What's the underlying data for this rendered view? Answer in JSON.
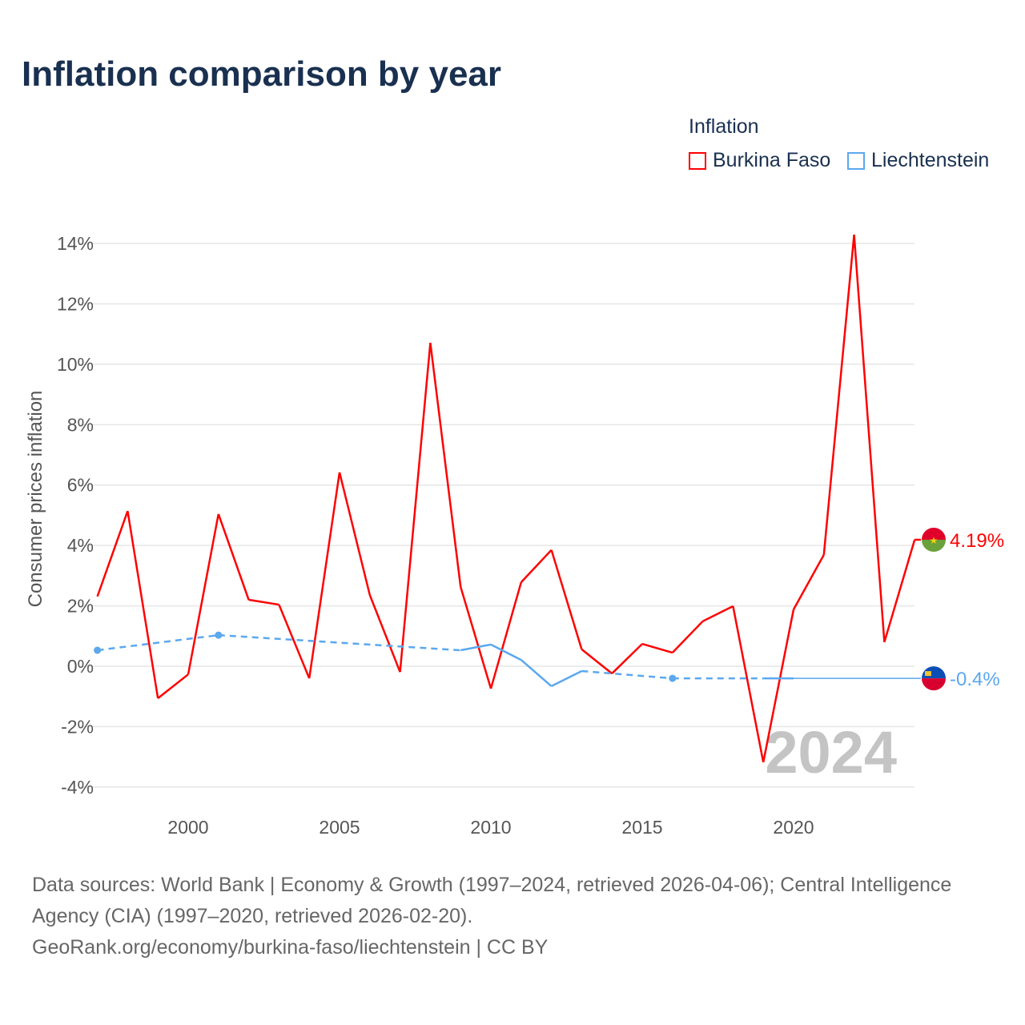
{
  "title": "Inflation comparison by year",
  "legend": {
    "title": "Inflation"
  },
  "watermark_year": "2024",
  "footer": {
    "line1": "Data sources: World Bank | Economy & Growth (1997–2024, retrieved 2026-04-06); Central Intelligence Agency (CIA) (1997–2020, retrieved 2026-02-20).",
    "line2": "GeoRank.org/economy/burkina-faso/liechtenstein | CC BY"
  },
  "chart_data": {
    "type": "line",
    "title": "Inflation comparison by year",
    "ylabel": "Consumer prices inflation",
    "xlabel": "",
    "xlim": [
      1997,
      2024
    ],
    "ylim": [
      -4.8,
      14.8
    ],
    "x_ticks": [
      2000,
      2005,
      2010,
      2015,
      2020
    ],
    "y_ticks": [
      -4,
      -2,
      0,
      2,
      4,
      6,
      8,
      10,
      12,
      14
    ],
    "y_tick_labels": [
      "-4%",
      "-2%",
      "0%",
      "2%",
      "4%",
      "6%",
      "8%",
      "10%",
      "12%",
      "14%"
    ],
    "grid": true,
    "legend_position": "top-right",
    "series": [
      {
        "name": "Burkina Faso",
        "color": "#ff0000",
        "end_label": "4.19%",
        "x": [
          1997,
          1998,
          1999,
          2000,
          2001,
          2002,
          2003,
          2004,
          2005,
          2006,
          2007,
          2008,
          2009,
          2010,
          2011,
          2012,
          2013,
          2014,
          2015,
          2016,
          2017,
          2018,
          2019,
          2020,
          2021,
          2022,
          2023,
          2024
        ],
        "y": [
          2.31,
          5.14,
          -1.06,
          -0.27,
          5.04,
          2.2,
          2.04,
          -0.4,
          6.42,
          2.36,
          -0.19,
          10.71,
          2.63,
          -0.74,
          2.78,
          3.85,
          0.56,
          -0.24,
          0.74,
          0.45,
          1.49,
          1.99,
          -3.18,
          1.88,
          3.69,
          14.29,
          0.8,
          4.19
        ]
      },
      {
        "name": "Liechtenstein",
        "color": "#5ba8ee",
        "end_label": "-0.4%",
        "x": [
          1997,
          2001,
          2009,
          2010,
          2011,
          2012,
          2013,
          2016,
          2019,
          2020
        ],
        "y": [
          0.53,
          1.03,
          0.53,
          0.72,
          0.21,
          -0.66,
          -0.16,
          -0.4,
          -0.4,
          -0.4
        ]
      }
    ]
  }
}
